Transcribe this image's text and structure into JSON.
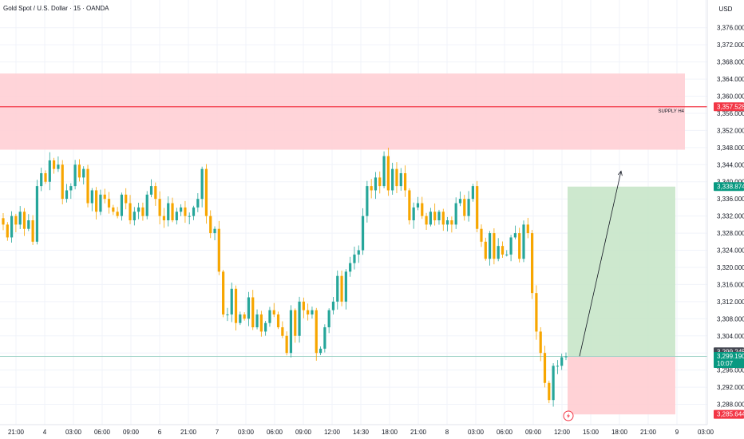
{
  "header": {
    "title": "Gold Spot / U.S. Dollar · 15 · OANDA"
  },
  "colors": {
    "up": "#26a69a",
    "down": "#f7a600",
    "supply_zone": "#ffcdd2",
    "supply_line": "#f23645",
    "target_zone": "#c8e6c9",
    "stop_zone": "#ffcdd2",
    "current_line": "#9fd3c7",
    "tag_red": "#f23645",
    "tag_green": "#089981",
    "tag_dark": "#434651"
  },
  "chart_data": {
    "type": "candlestick",
    "title": "Gold Spot / U.S. Dollar · 15 · OANDA",
    "currency_label": "USD",
    "y_range": [
      3284.0,
      3378.0
    ],
    "x_ticks": [
      "21:00",
      "4",
      "03:00",
      "06:00",
      "09:00",
      "6",
      "21:00",
      "7",
      "03:00",
      "06:00",
      "09:00",
      "12:00",
      "14:30",
      "18:00",
      "21:00",
      "8",
      "03:00",
      "06:00",
      "09:00",
      "12:00",
      "15:00",
      "18:00",
      "21:00",
      "9",
      "03:00"
    ],
    "y_ticks": [
      "3,376.000",
      "3,372.000",
      "3,368.000",
      "3,364.000",
      "3,360.000",
      "3,356.000",
      "3,352.000",
      "3,348.000",
      "3,344.000",
      "3,340.000",
      "3,336.000",
      "3,332.000",
      "3,328.000",
      "3,324.000",
      "3,320.000",
      "3,316.000",
      "3,312.000",
      "3,308.000",
      "3,304.000",
      "3,300.000",
      "3,296.000",
      "3,292.000",
      "3,288.000"
    ],
    "supply_zone": {
      "label": "SUPPLY H4",
      "top": 3365.3,
      "bottom": 3347.5,
      "line": 3357.528
    },
    "position": {
      "entry": 3299.245,
      "target": 3338.874,
      "stop": 3285.644
    },
    "price_tags": [
      {
        "text": "3,357.528",
        "color": "tag_red",
        "value": 3357.528
      },
      {
        "text": "3,338.874",
        "color": "tag_green",
        "value": 3338.874
      },
      {
        "text": "3,299.245",
        "color": "tag_dark",
        "value": 3299.245
      },
      {
        "text": "3,299.190",
        "color": "tag_green",
        "value": 3299.19,
        "sub": "10:07"
      },
      {
        "text": "3,285.644",
        "color": "tag_red",
        "value": 3285.644
      }
    ],
    "path": [
      3330,
      3327,
      3332,
      3330,
      3333,
      3329,
      3331,
      3326,
      3339,
      3342,
      3340,
      3345,
      3343,
      3344,
      3336,
      3338,
      3339,
      3344,
      3341,
      3343,
      3335,
      3338,
      3333,
      3337,
      3336,
      3334,
      3333,
      3332,
      3337,
      3335,
      3331,
      3333,
      3334,
      3332,
      3337,
      3339,
      3336,
      3332,
      3331,
      3335,
      3331,
      3333,
      3334,
      3332,
      3332,
      3334,
      3336,
      3343,
      3332,
      3328,
      3329,
      3319,
      3309,
      3309,
      3315,
      3307,
      3309,
      3308,
      3313,
      3306,
      3309,
      3305,
      3307,
      3310,
      3309,
      3306,
      3304,
      3300,
      3310,
      3304,
      3312,
      3310,
      3309,
      3310,
      3300,
      3301,
      3306,
      3310,
      3312,
      3318,
      3312,
      3319,
      3321,
      3323,
      3324,
      3332,
      3339,
      3338,
      3341,
      3339,
      3346,
      3338,
      3343,
      3339,
      3342,
      3338,
      3331,
      3334,
      3335,
      3332,
      3330,
      3333,
      3331,
      3333,
      3330,
      3331,
      3330,
      3335,
      3336,
      3332,
      3336,
      3339,
      3329,
      3326,
      3322,
      3328,
      3322,
      3325,
      3323,
      3323,
      3327,
      3328,
      3322,
      3330,
      3328,
      3314,
      3305,
      3300,
      3293,
      3289,
      3297,
      3297,
      3299,
      3299.2
    ]
  }
}
